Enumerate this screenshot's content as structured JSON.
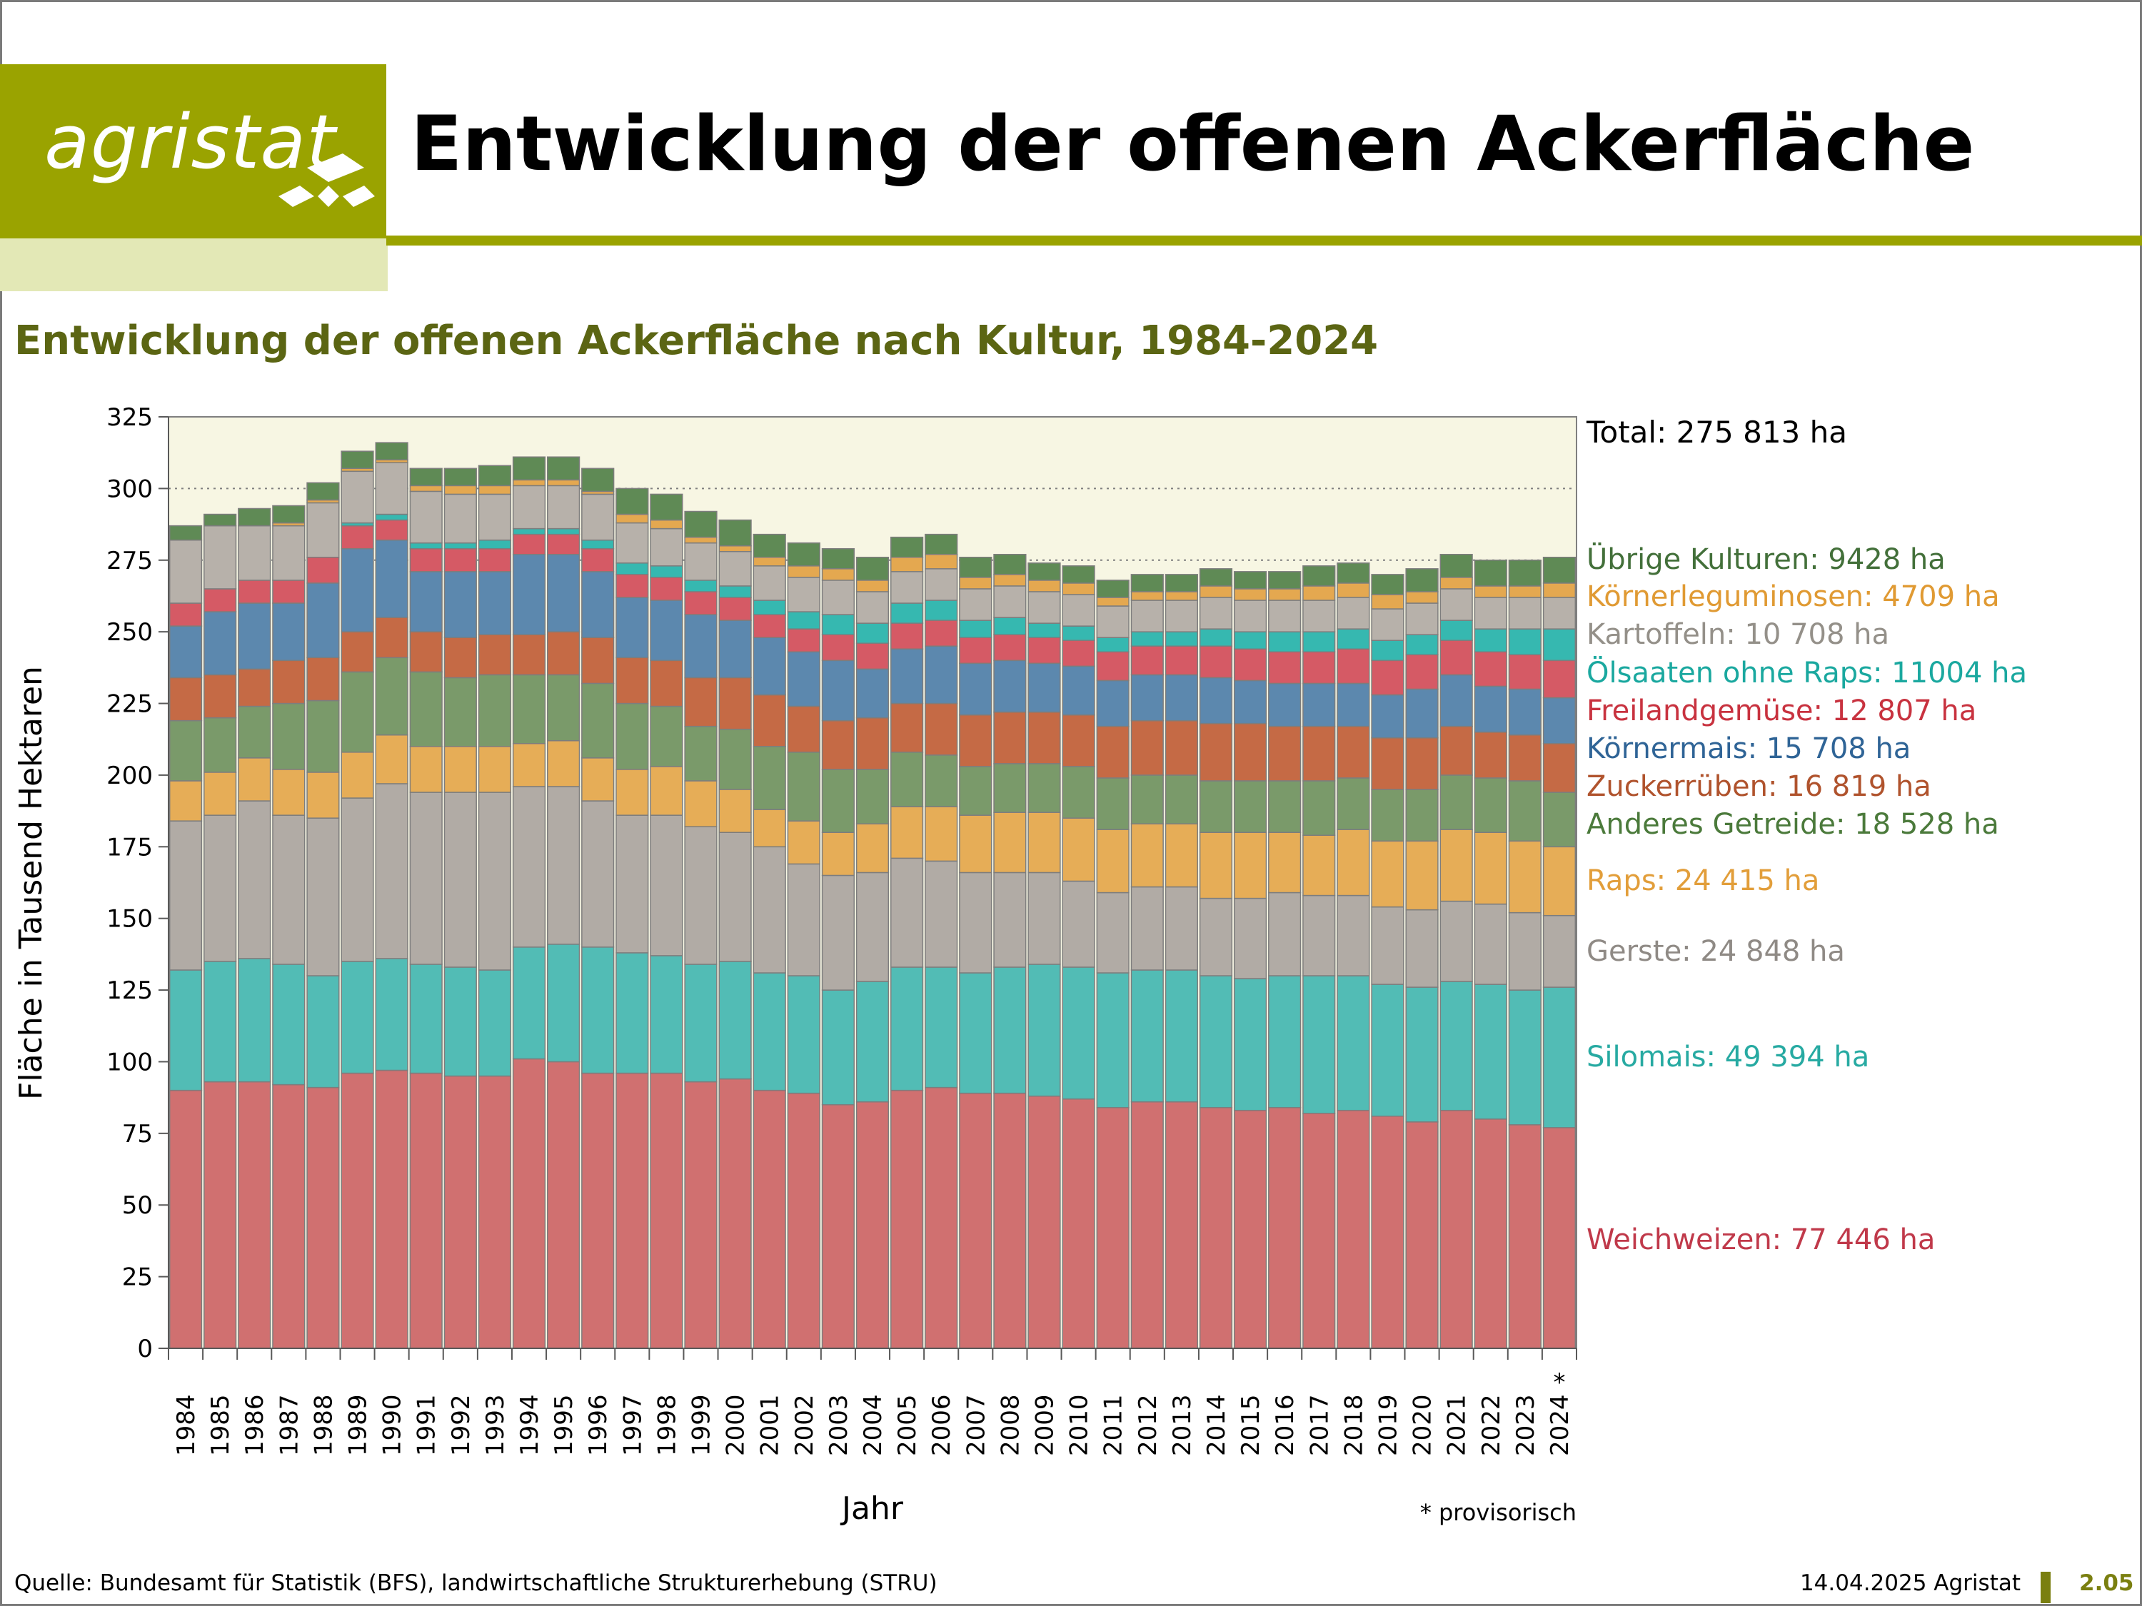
{
  "header": {
    "logo_text": "agristat",
    "title": "Entwicklung der offenen Ackerfläche",
    "brand_color": "#9aa300"
  },
  "chart_data": {
    "type": "stacked-bar",
    "title": "Entwicklung der offenen Ackerfläche nach Kultur, 1984-2024",
    "xlabel": "Jahr",
    "ylabel": "Fläche in Tausend Hektaren",
    "ylim": [
      0,
      325
    ],
    "yticks": [
      0,
      25,
      50,
      75,
      100,
      125,
      150,
      175,
      200,
      225,
      250,
      275,
      300,
      325
    ],
    "grid": "dotted at 275 and 300",
    "x": [
      "1984",
      "1985",
      "1986",
      "1987",
      "1988",
      "1989",
      "1990",
      "1991",
      "1992",
      "1993",
      "1994",
      "1995",
      "1996",
      "1997",
      "1998",
      "1999",
      "2000",
      "2001",
      "2002",
      "2003",
      "2004",
      "2005",
      "2006",
      "2007",
      "2008",
      "2009",
      "2010",
      "2011",
      "2012",
      "2013",
      "2014",
      "2015",
      "2016",
      "2017",
      "2018",
      "2019",
      "2020",
      "2021",
      "2022",
      "2023",
      "2024"
    ],
    "provisional_marker": "*",
    "provisional_note": "* provisorisch",
    "total_label": "Total: 275 813 ha",
    "series": [
      {
        "name": "Weichweizen",
        "label": "Weichweizen: 77 446 ha",
        "color": "#d07070",
        "text_color": "#c0394a",
        "values": [
          90,
          93,
          93,
          92,
          91,
          96,
          97,
          96,
          95,
          95,
          101,
          100,
          96,
          96,
          96,
          93,
          94,
          90,
          89,
          85,
          86,
          90,
          91,
          89,
          89,
          88,
          87,
          84,
          86,
          86,
          84,
          83,
          84,
          82,
          83,
          81,
          79,
          83,
          80,
          78,
          77
        ]
      },
      {
        "name": "Silomais",
        "label": "Silomais: 49 394 ha",
        "color": "#52bcb5",
        "text_color": "#27aaa2",
        "values": [
          42,
          42,
          43,
          42,
          39,
          39,
          39,
          38,
          38,
          37,
          39,
          41,
          44,
          42,
          41,
          41,
          41,
          41,
          41,
          40,
          42,
          43,
          42,
          42,
          44,
          46,
          46,
          47,
          46,
          46,
          46,
          46,
          46,
          48,
          47,
          46,
          47,
          45,
          47,
          47,
          49
        ]
      },
      {
        "name": "Gerste",
        "label": "Gerste: 24 848 ha",
        "color": "#b1aba5",
        "text_color": "#8f8a85",
        "values": [
          52,
          51,
          55,
          52,
          55,
          57,
          61,
          60,
          61,
          62,
          56,
          55,
          51,
          48,
          49,
          48,
          45,
          44,
          39,
          40,
          38,
          38,
          37,
          35,
          33,
          32,
          30,
          28,
          29,
          29,
          27,
          28,
          29,
          28,
          28,
          27,
          27,
          28,
          28,
          27,
          25
        ]
      },
      {
        "name": "Raps",
        "label": "Raps: 24 415 ha",
        "color": "#e6ad57",
        "text_color": "#e29e3a",
        "values": [
          14,
          15,
          15,
          16,
          16,
          16,
          17,
          16,
          16,
          16,
          15,
          16,
          15,
          16,
          17,
          16,
          15,
          13,
          15,
          15,
          17,
          18,
          19,
          20,
          21,
          21,
          22,
          22,
          22,
          22,
          23,
          23,
          21,
          21,
          23,
          23,
          24,
          25,
          25,
          25,
          24
        ]
      },
      {
        "name": "Anderes Getreide",
        "label": "Anderes Getreide: 18 528 ha",
        "color": "#7a9a6a",
        "text_color": "#4b7a3b",
        "values": [
          21,
          19,
          18,
          23,
          25,
          28,
          27,
          26,
          24,
          25,
          24,
          23,
          26,
          23,
          21,
          19,
          21,
          22,
          24,
          22,
          19,
          19,
          18,
          17,
          17,
          17,
          18,
          18,
          17,
          17,
          18,
          18,
          18,
          19,
          18,
          18,
          18,
          19,
          19,
          21,
          19
        ]
      },
      {
        "name": "Zuckerrüben",
        "label": "Zuckerrüben: 16 819 ha",
        "color": "#c56a45",
        "text_color": "#b0532d",
        "values": [
          15,
          15,
          13,
          15,
          15,
          14,
          14,
          14,
          14,
          14,
          14,
          15,
          16,
          16,
          16,
          17,
          18,
          18,
          16,
          17,
          18,
          17,
          18,
          18,
          18,
          18,
          18,
          18,
          19,
          19,
          20,
          20,
          19,
          19,
          18,
          18,
          18,
          17,
          16,
          16,
          17
        ]
      },
      {
        "name": "Körnermais",
        "label": "Körnermais: 15 708 ha",
        "color": "#5c88ae",
        "text_color": "#2f6496",
        "values": [
          18,
          22,
          23,
          20,
          26,
          29,
          27,
          21,
          23,
          22,
          28,
          27,
          23,
          21,
          21,
          22,
          20,
          20,
          19,
          21,
          17,
          19,
          20,
          18,
          18,
          17,
          17,
          16,
          16,
          16,
          16,
          15,
          15,
          15,
          15,
          15,
          17,
          18,
          16,
          16,
          16
        ]
      },
      {
        "name": "Freilandgemüse",
        "label": "Freilandgemüse: 12 807 ha",
        "color": "#d55a65",
        "text_color": "#c8323f",
        "values": [
          8,
          8,
          8,
          8,
          9,
          8,
          7,
          8,
          8,
          8,
          7,
          7,
          8,
          8,
          8,
          8,
          8,
          8,
          8,
          9,
          9,
          9,
          9,
          9,
          9,
          9,
          9,
          10,
          10,
          10,
          11,
          11,
          11,
          11,
          12,
          12,
          12,
          12,
          12,
          12,
          13
        ]
      },
      {
        "name": "Ölsaaten ohne Raps",
        "label": "Ölsaaten ohne Raps: 11004 ha",
        "color": "#36b8b0",
        "text_color": "#1aa89f",
        "values": [
          0,
          0,
          0,
          0,
          0,
          1,
          2,
          2,
          2,
          3,
          2,
          2,
          3,
          4,
          4,
          4,
          4,
          5,
          6,
          7,
          7,
          7,
          7,
          6,
          6,
          5,
          5,
          5,
          5,
          5,
          6,
          6,
          7,
          7,
          7,
          7,
          7,
          7,
          8,
          9,
          11
        ]
      },
      {
        "name": "Kartoffeln",
        "label": "Kartoffeln: 10 708 ha",
        "color": "#b7b1aa",
        "text_color": "#949089",
        "values": [
          22,
          22,
          19,
          19,
          19,
          18,
          18,
          18,
          17,
          16,
          15,
          15,
          16,
          14,
          13,
          13,
          12,
          12,
          12,
          12,
          11,
          11,
          11,
          11,
          11,
          11,
          11,
          11,
          11,
          11,
          11,
          11,
          11,
          11,
          11,
          11,
          11,
          11,
          11,
          11,
          11
        ]
      },
      {
        "name": "Körnerleguminosen",
        "label": "Körnerleguminosen: 4709 ha",
        "color": "#e4a850",
        "text_color": "#e09a33",
        "values": [
          0,
          0,
          0,
          1,
          1,
          1,
          1,
          2,
          3,
          3,
          2,
          2,
          1,
          3,
          3,
          2,
          2,
          3,
          4,
          4,
          4,
          5,
          5,
          4,
          4,
          4,
          4,
          3,
          3,
          3,
          4,
          4,
          4,
          5,
          5,
          5,
          4,
          4,
          4,
          4,
          5
        ]
      },
      {
        "name": "Übrige Kulturen",
        "label": "Übrige Kulturen: 9428 ha",
        "color": "#5f8a55",
        "text_color": "#43703a",
        "values": [
          5,
          4,
          6,
          6,
          6,
          6,
          6,
          6,
          6,
          7,
          8,
          8,
          8,
          9,
          9,
          9,
          9,
          8,
          8,
          7,
          8,
          7,
          7,
          7,
          7,
          6,
          6,
          6,
          6,
          6,
          6,
          6,
          6,
          7,
          7,
          7,
          8,
          8,
          9,
          9,
          9
        ]
      }
    ]
  },
  "footer": {
    "source": "Quelle: Bundesamt für Statistik (BFS), landwirtschaftliche Strukturerhebung (STRU)",
    "date": "14.04.2025 Agristat",
    "page": "2.05"
  }
}
